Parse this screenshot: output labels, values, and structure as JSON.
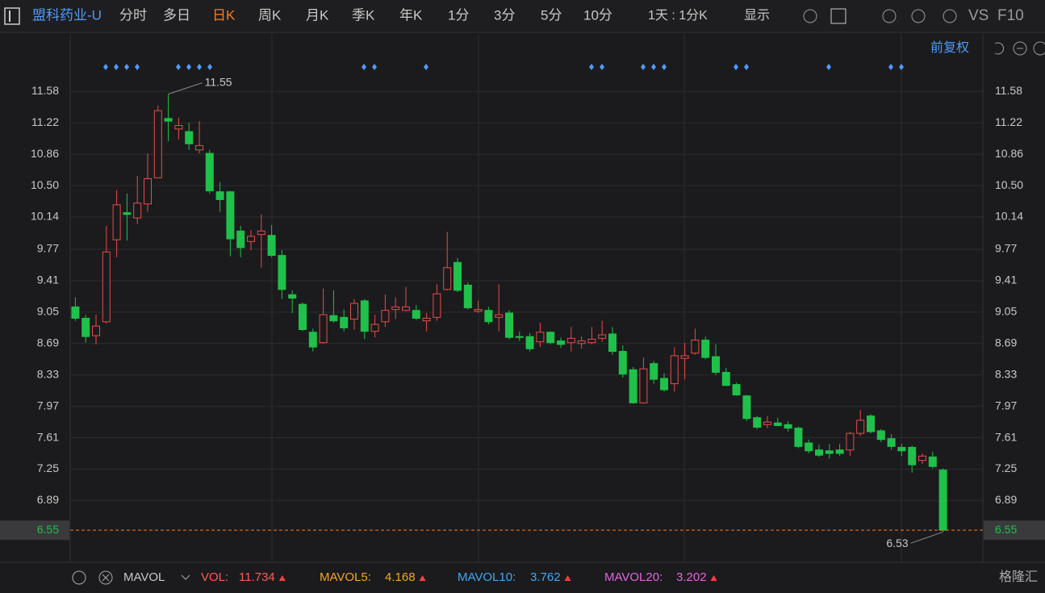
{
  "toolbar": {
    "symbol": "盟科药业-U",
    "tabs": [
      "分时",
      "多日",
      "日K",
      "周K",
      "月K",
      "季K",
      "年K",
      "1分",
      "3分",
      "5分",
      "10分"
    ],
    "period": "1天 : 1分K",
    "display": "显示",
    "vs": "VS",
    "f10": "F10"
  },
  "adjust": "前复权",
  "chart_data": {
    "type": "candlestick",
    "up_color": "#e84b4b",
    "down_color": "#1fc14a",
    "grid": true,
    "ylim": [
      6.2,
      12.24
    ],
    "yticks": [
      11.58,
      11.22,
      10.86,
      {
        "value": 10.5,
        "label": "10.50"
      },
      10.14,
      9.77,
      9.41,
      9.05,
      8.69,
      8.33,
      7.97,
      7.61,
      7.25,
      6.89
    ],
    "open": [
      9.11,
      8.98,
      8.78,
      8.94,
      9.88,
      10.19,
      10.13,
      10.29,
      10.59,
      11.27,
      11.15,
      11.12,
      10.91,
      10.87,
      10.43,
      10.43,
      9.98,
      9.86,
      9.94,
      9.93,
      9.7,
      9.25,
      9.14,
      8.82,
      8.7,
      9.01,
      8.99,
      8.97,
      9.18,
      8.83,
      8.94,
      9.08,
      9.07,
      9.07,
      8.95,
      8.99,
      9.31,
      9.62,
      9.36,
      9.06,
      9.07,
      8.99,
      9.04,
      8.77,
      8.77,
      8.71,
      8.82,
      8.72,
      8.7,
      8.69,
      8.7,
      8.75,
      8.8,
      8.6,
      8.39,
      8.01,
      8.46,
      8.29,
      8.23,
      8.52,
      8.58,
      8.73,
      8.54,
      8.36,
      8.22,
      8.09,
      7.84,
      7.76,
      7.78,
      7.76,
      7.72,
      7.55,
      7.47,
      7.46,
      7.47,
      7.47,
      7.66,
      7.86,
      7.69,
      7.6,
      7.5,
      7.5,
      7.35,
      7.39,
      7.24
    ],
    "high": [
      9.22,
      9.02,
      9.02,
      10.04,
      10.45,
      10.41,
      10.61,
      10.87,
      11.42,
      11.55,
      11.28,
      11.22,
      11.24,
      10.91,
      10.54,
      10.44,
      10.04,
      9.99,
      10.17,
      10.05,
      9.76,
      9.3,
      9.16,
      8.86,
      9.32,
      9.3,
      9.08,
      9.2,
      9.2,
      9.02,
      9.25,
      9.22,
      9.34,
      9.13,
      9.04,
      9.37,
      9.97,
      9.67,
      9.39,
      9.18,
      9.11,
      9.37,
      9.07,
      8.83,
      8.81,
      8.93,
      8.83,
      8.76,
      8.88,
      8.77,
      8.88,
      8.95,
      8.88,
      8.67,
      8.42,
      8.53,
      8.49,
      8.35,
      8.65,
      8.7,
      8.86,
      8.77,
      8.68,
      8.41,
      8.24,
      8.1,
      7.86,
      7.86,
      7.84,
      7.8,
      7.74,
      7.59,
      7.53,
      7.54,
      7.54,
      7.68,
      7.93,
      7.88,
      7.71,
      7.65,
      7.54,
      7.52,
      7.43,
      7.45,
      7.26
    ],
    "low": [
      8.95,
      8.7,
      8.68,
      8.92,
      9.68,
      9.87,
      10.06,
      10.2,
      10.59,
      11.01,
      11.03,
      10.91,
      10.87,
      10.41,
      10.2,
      9.69,
      9.68,
      9.76,
      9.56,
      9.68,
      9.2,
      9.04,
      8.83,
      8.6,
      8.69,
      8.93,
      8.83,
      8.85,
      8.74,
      8.76,
      8.88,
      8.97,
      9.06,
      8.96,
      8.83,
      8.95,
      9.3,
      9.28,
      9.08,
      9.04,
      8.91,
      8.83,
      8.74,
      8.72,
      8.6,
      8.65,
      8.68,
      8.64,
      8.6,
      8.63,
      8.68,
      8.71,
      8.56,
      8.3,
      8.0,
      8.0,
      8.23,
      8.14,
      8.14,
      8.28,
      8.56,
      8.51,
      8.33,
      8.2,
      8.09,
      7.8,
      7.71,
      7.72,
      7.74,
      7.68,
      7.49,
      7.43,
      7.39,
      7.37,
      7.4,
      7.4,
      7.63,
      7.66,
      7.56,
      7.47,
      7.4,
      7.21,
      7.31,
      7.26,
      6.53
    ],
    "close": [
      8.98,
      8.77,
      8.89,
      9.74,
      10.28,
      10.17,
      10.3,
      10.58,
      11.36,
      11.24,
      11.19,
      10.98,
      10.96,
      10.44,
      10.34,
      9.89,
      9.79,
      9.92,
      9.98,
      9.7,
      9.31,
      9.21,
      8.85,
      8.65,
      9.02,
      8.95,
      8.87,
      9.15,
      8.83,
      8.91,
      9.07,
      9.11,
      9.11,
      8.98,
      8.98,
      9.26,
      9.56,
      9.3,
      9.1,
      9.08,
      8.94,
      9.02,
      8.76,
      8.76,
      8.63,
      8.82,
      8.7,
      8.68,
      8.75,
      8.72,
      8.74,
      8.79,
      8.6,
      8.34,
      8.01,
      8.4,
      8.28,
      8.16,
      8.55,
      8.55,
      8.73,
      8.53,
      8.36,
      8.21,
      8.1,
      7.83,
      7.73,
      7.79,
      7.75,
      7.72,
      7.51,
      7.46,
      7.41,
      7.43,
      7.43,
      7.66,
      7.81,
      7.68,
      7.59,
      7.51,
      7.46,
      7.3,
      7.4,
      7.28,
      6.55
    ]
  },
  "indicator_bar": {
    "name": "MAVOL",
    "items": [
      {
        "label": "VOL:",
        "value": 11.734,
        "color": "#ff5a5a"
      },
      {
        "label": "MAVOL5:",
        "value": 4.168,
        "color": "#f5a623"
      },
      {
        "label": "MAVOL10:",
        "value": 3.762,
        "color": "#3fa9f5"
      },
      {
        "label": "MAVOL20:",
        "value": 3.202,
        "color": "#e066e0"
      }
    ]
  },
  "watermark": "格隆汇"
}
